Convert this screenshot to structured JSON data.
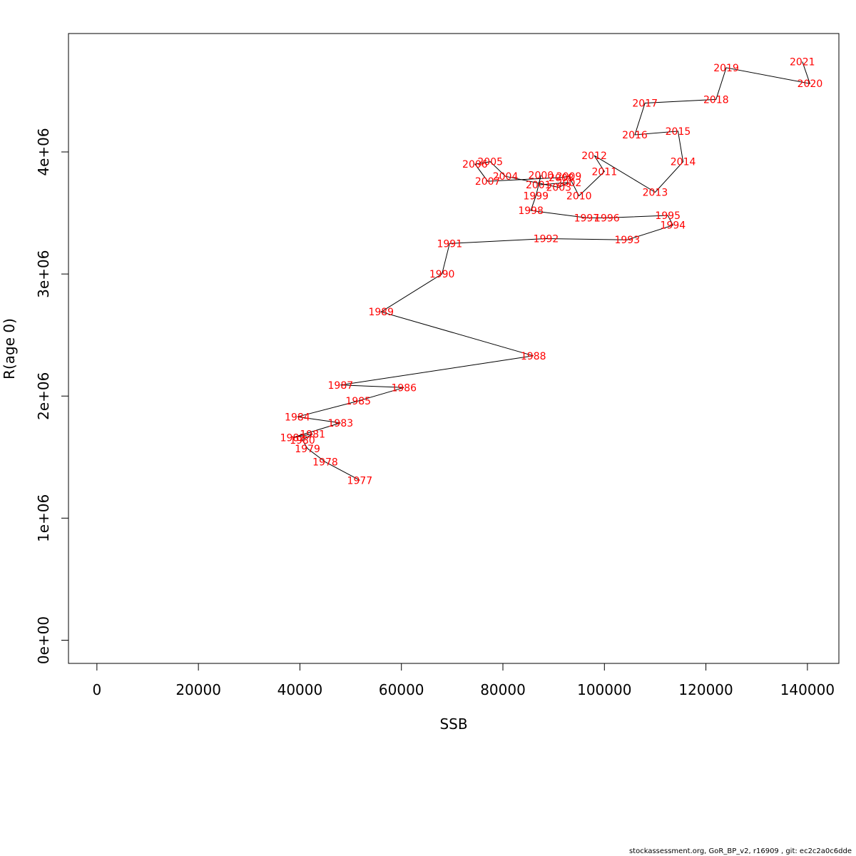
{
  "chart_data": {
    "type": "line",
    "xlabel": "SSB",
    "ylabel": "R(age 0)",
    "xlim": [
      -5600,
      146200
    ],
    "ylim": [
      -190000,
      4970000
    ],
    "xticks": [
      0,
      20000,
      40000,
      60000,
      80000,
      100000,
      120000,
      140000
    ],
    "xtick_labels": [
      "0",
      "20000",
      "40000",
      "60000",
      "80000",
      "100000",
      "120000",
      "140000"
    ],
    "yticks": [
      0,
      1000000,
      2000000,
      3000000,
      4000000
    ],
    "ytick_labels": [
      "0e+00",
      "1e+06",
      "2e+06",
      "3e+06",
      "4e+06"
    ],
    "grid": false,
    "label_color": "#ff0000",
    "line_color": "#000000",
    "points": [
      {
        "label": "1977",
        "x": 51800,
        "y": 1310000
      },
      {
        "label": "1978",
        "x": 45000,
        "y": 1460000
      },
      {
        "label": "1979",
        "x": 41500,
        "y": 1570000
      },
      {
        "label": "1980",
        "x": 40500,
        "y": 1640000
      },
      {
        "label": "1981",
        "x": 42500,
        "y": 1690000
      },
      {
        "label": "1982",
        "x": 38600,
        "y": 1660000
      },
      {
        "label": "1983",
        "x": 48000,
        "y": 1780000
      },
      {
        "label": "1984",
        "x": 39500,
        "y": 1830000
      },
      {
        "label": "1985",
        "x": 51500,
        "y": 1960000
      },
      {
        "label": "1986",
        "x": 60500,
        "y": 2070000
      },
      {
        "label": "1987",
        "x": 48000,
        "y": 2090000
      },
      {
        "label": "1988",
        "x": 86000,
        "y": 2330000
      },
      {
        "label": "1989",
        "x": 56000,
        "y": 2690000
      },
      {
        "label": "1990",
        "x": 68000,
        "y": 3000000
      },
      {
        "label": "1991",
        "x": 69500,
        "y": 3250000
      },
      {
        "label": "1992",
        "x": 88500,
        "y": 3290000
      },
      {
        "label": "1993",
        "x": 104500,
        "y": 3280000
      },
      {
        "label": "1994",
        "x": 113500,
        "y": 3400000
      },
      {
        "label": "1995",
        "x": 112500,
        "y": 3480000
      },
      {
        "label": "1996",
        "x": 100500,
        "y": 3460000
      },
      {
        "label": "1997",
        "x": 96500,
        "y": 3460000
      },
      {
        "label": "1998",
        "x": 85500,
        "y": 3520000
      },
      {
        "label": "1999",
        "x": 86500,
        "y": 3640000
      },
      {
        "label": "2000",
        "x": 87500,
        "y": 3810000
      },
      {
        "label": "2001",
        "x": 87000,
        "y": 3730000
      },
      {
        "label": "2002",
        "x": 93000,
        "y": 3750000
      },
      {
        "label": "2003",
        "x": 91000,
        "y": 3710000
      },
      {
        "label": "2004",
        "x": 80500,
        "y": 3800000
      },
      {
        "label": "2005",
        "x": 77500,
        "y": 3920000
      },
      {
        "label": "2006",
        "x": 74500,
        "y": 3900000
      },
      {
        "label": "2007",
        "x": 77000,
        "y": 3760000
      },
      {
        "label": "2008",
        "x": 91500,
        "y": 3790000
      },
      {
        "label": "2009",
        "x": 93000,
        "y": 3800000
      },
      {
        "label": "2010",
        "x": 95000,
        "y": 3640000
      },
      {
        "label": "2011",
        "x": 100000,
        "y": 3840000
      },
      {
        "label": "2012",
        "x": 98000,
        "y": 3970000
      },
      {
        "label": "2013",
        "x": 110000,
        "y": 3670000
      },
      {
        "label": "2014",
        "x": 115500,
        "y": 3920000
      },
      {
        "label": "2015",
        "x": 114500,
        "y": 4170000
      },
      {
        "label": "2016",
        "x": 106000,
        "y": 4140000
      },
      {
        "label": "2017",
        "x": 108000,
        "y": 4400000
      },
      {
        "label": "2018",
        "x": 122000,
        "y": 4430000
      },
      {
        "label": "2019",
        "x": 124000,
        "y": 4690000
      },
      {
        "label": "2020",
        "x": 140500,
        "y": 4560000
      },
      {
        "label": "2021",
        "x": 139000,
        "y": 4740000
      }
    ]
  },
  "footer": {
    "text": "stockassessment.org, GoR_BP_v2, r16909 , git: ec2c2a0c6dde"
  }
}
